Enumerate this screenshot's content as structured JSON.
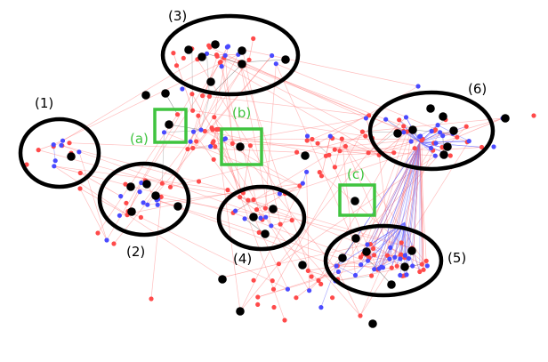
{
  "colors": {
    "red_node": "#ff4a4a",
    "blue_node": "#4a4aff",
    "black_node": "#000000",
    "red_edge": "#ff7070",
    "blue_edge": "#6a6aff",
    "gray_edge": "#9a9a9a",
    "community_outline": "#000000",
    "highlight_box": "#3fc43f",
    "highlight_label": "#3fc43f"
  },
  "communities": [
    {
      "id": "c1",
      "label": "(1)"
    },
    {
      "id": "c2",
      "label": "(2)"
    },
    {
      "id": "c3",
      "label": "(3)"
    },
    {
      "id": "c4",
      "label": "(4)"
    },
    {
      "id": "c5",
      "label": "(5)"
    },
    {
      "id": "c6",
      "label": "(6)"
    }
  ],
  "highlights": [
    {
      "id": "a",
      "label": "(a)"
    },
    {
      "id": "b",
      "label": "(b)"
    },
    {
      "id": "c",
      "label": "(c)"
    }
  ]
}
